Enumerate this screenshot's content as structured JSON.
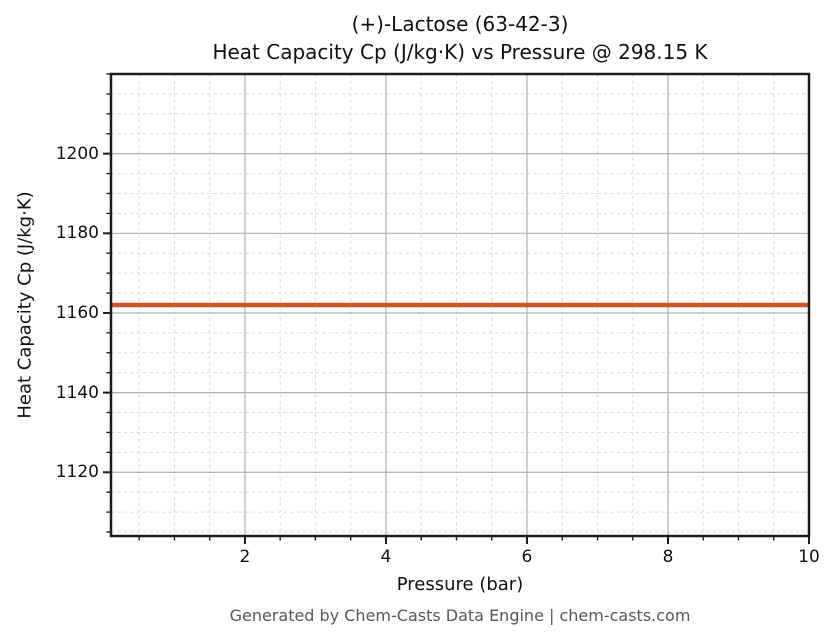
{
  "figure": {
    "footer": "Generated by Chem-Casts Data Engine | chem-casts.com"
  },
  "colors": {
    "background": "#ffffff",
    "spine": "#1c1c1c",
    "tick": "#1c1c1c",
    "tick_label": "#111111",
    "major_grid": "#b0b0b0",
    "minor_grid": "#d9d9d9",
    "footer_text": "#575757"
  },
  "chart_data": {
    "type": "line",
    "title": "(+)-Lactose (63-42-3)",
    "subtitle": "Heat Capacity Cp (J/kg·K) vs Pressure @ 298.15 K",
    "xlabel": "Pressure (bar)",
    "ylabel": "Heat Capacity Cp (J/kg·K)",
    "xlim": [
      0.1,
      10
    ],
    "ylim": [
      1104,
      1220
    ],
    "x_major_ticks": [
      2,
      4,
      6,
      8,
      10
    ],
    "x_minor_step": 0.5,
    "y_major_ticks": [
      1120,
      1140,
      1160,
      1180,
      1200
    ],
    "y_minor_step": 5,
    "grid": {
      "major": "solid",
      "minor": "dashed"
    },
    "legend": "none",
    "series": [
      {
        "name": "Heat Capacity Cp",
        "color": "#cf5228",
        "x": [
          0.1,
          1,
          2,
          3,
          4,
          5,
          6,
          7,
          8,
          9,
          10
        ],
        "y": [
          1162,
          1162,
          1162,
          1162,
          1162,
          1162,
          1162,
          1162,
          1162,
          1162,
          1162
        ]
      }
    ]
  }
}
